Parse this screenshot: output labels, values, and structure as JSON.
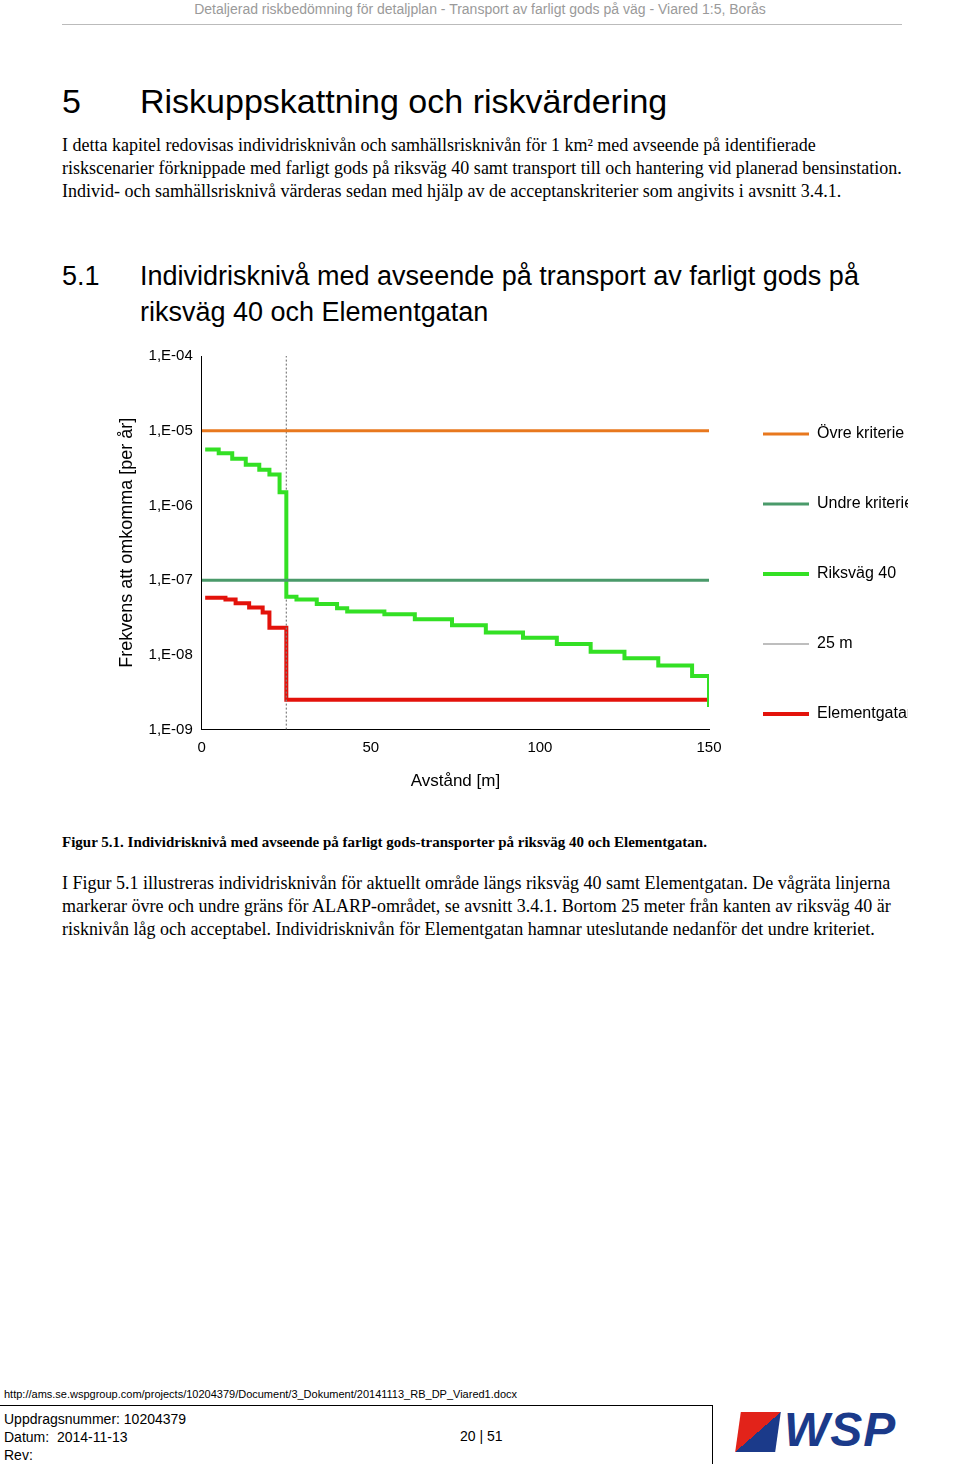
{
  "header": {
    "running_title": "Detaljerad riskbedömning för detaljplan - Transport av farligt gods på väg - Viared 1:5, Borås"
  },
  "section": {
    "number": "5",
    "title": "Riskuppskattning och riskvärdering",
    "text": "I detta kapitel redovisas individrisknivån och samhällsrisknivån för 1 km² med avseende på identifierade riskscenarier förknippade med farligt gods på riksväg 40 samt transport till och hantering vid planerad bensinstation. Individ- och samhällsrisknivå värderas sedan med hjälp av de acceptanskriterier som angivits i avsnitt 3.4.1."
  },
  "subsection": {
    "number": "5.1",
    "title": "Individrisknivå med avseende på transport av farligt gods på riksväg 40 och Elementgatan"
  },
  "chart_data": {
    "type": "line",
    "x_label": "Avstånd [m]",
    "y_label": "Frekvens att omkomma [per år]",
    "xlim": [
      0,
      150
    ],
    "xticks": [
      0,
      50,
      100,
      150
    ],
    "ylim": [
      1e-09,
      0.0001
    ],
    "yticks": [
      {
        "value": 1e-09,
        "label": "1,E-09"
      },
      {
        "value": 1e-08,
        "label": "1,E-08"
      },
      {
        "value": 1e-07,
        "label": "1,E-07"
      },
      {
        "value": 1e-06,
        "label": "1,E-06"
      },
      {
        "value": 1e-05,
        "label": "1,E-05"
      },
      {
        "value": 0.0001,
        "label": "1,E-04"
      }
    ],
    "log": "y",
    "grid": false,
    "legend": "right",
    "series": [
      {
        "name": "Övre kriterie",
        "color": "#e8781e",
        "line_style": "solid",
        "x": [
          0,
          150
        ],
        "values": [
          1e-05,
          1e-05
        ]
      },
      {
        "name": "Undre kriterie",
        "color": "#4a9a6a",
        "line_style": "solid",
        "x": [
          0,
          150
        ],
        "values": [
          1e-07,
          1e-07
        ]
      },
      {
        "name": "Riksväg 40",
        "color": "#33e024",
        "line_style": "steps",
        "x": [
          1,
          5,
          9,
          13,
          17,
          20,
          23,
          25,
          28,
          34,
          40,
          43,
          54,
          63,
          74,
          84,
          95,
          105,
          115,
          125,
          135,
          145,
          150
        ],
        "values": [
          5.6e-06,
          5e-06,
          4.2e-06,
          3.5e-06,
          3e-06,
          2.6e-06,
          1.5e-06,
          6e-08,
          5.5e-08,
          4.8e-08,
          4.2e-08,
          3.8e-08,
          3.5e-08,
          3e-08,
          2.5e-08,
          2e-08,
          1.7e-08,
          1.4e-08,
          1.1e-08,
          9e-09,
          7.2e-09,
          5.2e-09,
          2e-09
        ]
      },
      {
        "name": "25 m",
        "color": "#7f7f7f",
        "line_style": "dotted",
        "x": [
          25,
          25
        ],
        "values": [
          1e-09,
          0.0001
        ]
      },
      {
        "name": "Elementgatan",
        "color": "#e3120b",
        "line_style": "steps",
        "x": [
          1,
          7,
          10,
          14,
          18,
          20,
          25,
          150
        ],
        "values": [
          5.8e-08,
          5.5e-08,
          4.9e-08,
          4.3e-08,
          3.7e-08,
          2.3e-08,
          2.5e-09,
          2.4e-09
        ]
      }
    ]
  },
  "caption": "Figur 5.1. Individrisknivå med avseende på farligt gods-transporter på riksväg 40 och Elementgatan.",
  "body": "I Figur 5.1 illustreras individrisknivån för aktuellt område längs riksväg 40 samt Elementgatan. De vågräta linjerna markerar övre och undre gräns för ALARP-området, se avsnitt 3.4.1. Bortom 25 meter från kanten av riksväg 40 är risknivån låg och acceptabel. Individrisknivån för Elementgatan hamnar uteslutande nedanför det undre kriteriet.",
  "footer": {
    "url": "http://ams.se.wspgroup.com/projects/10204379/Document/3_Dokument/20141113_RB_DP_Viared1.docx",
    "lines": [
      "Uppdragsnummer: 10204379",
      "Datum:  2014-11-13",
      "Rev:"
    ],
    "page": "20 | 51",
    "logo": "WSP"
  }
}
